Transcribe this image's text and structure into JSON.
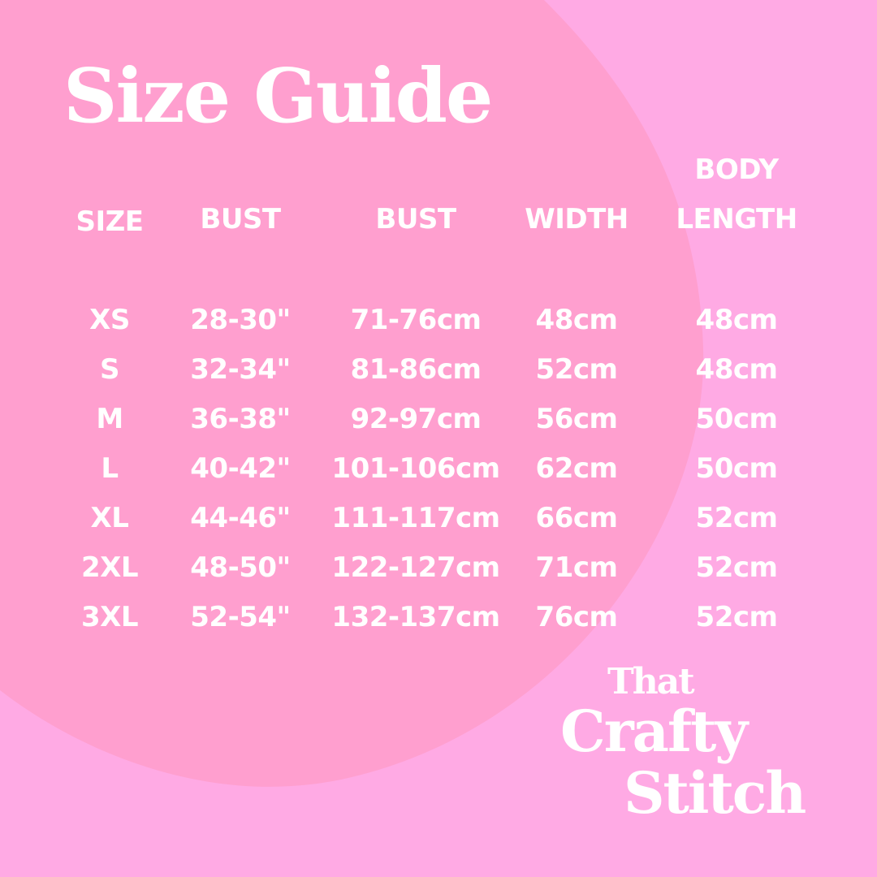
{
  "title": "Size Guide",
  "colors": {
    "background": "#ffaae4",
    "blob": "#ff9fcf",
    "text": "#ffffff"
  },
  "headers": {
    "size": "SIZE",
    "bust_in": "BUST",
    "bust_cm": "BUST",
    "width": "WIDTH",
    "body_length_line1": "BODY",
    "body_length_line2": "LENGTH"
  },
  "rows": [
    {
      "size": "XS",
      "bust_in": "28-30\"",
      "bust_cm": "71-76cm",
      "width": "48cm",
      "length": "48cm"
    },
    {
      "size": "S",
      "bust_in": "32-34\"",
      "bust_cm": "81-86cm",
      "width": "52cm",
      "length": "48cm"
    },
    {
      "size": "M",
      "bust_in": "36-38\"",
      "bust_cm": "92-97cm",
      "width": "56cm",
      "length": "50cm"
    },
    {
      "size": "L",
      "bust_in": "40-42\"",
      "bust_cm": "101-106cm",
      "width": "62cm",
      "length": "50cm"
    },
    {
      "size": "XL",
      "bust_in": "44-46\"",
      "bust_cm": "111-117cm",
      "width": "66cm",
      "length": "52cm"
    },
    {
      "size": "2XL",
      "bust_in": "48-50\"",
      "bust_cm": "122-127cm",
      "width": "71cm",
      "length": "52cm"
    },
    {
      "size": "3XL",
      "bust_in": "52-54\"",
      "bust_cm": "132-137cm",
      "width": "76cm",
      "length": "52cm"
    }
  ],
  "logo": {
    "line1": "That",
    "line2": "Crafty",
    "line3": "Stitch"
  }
}
